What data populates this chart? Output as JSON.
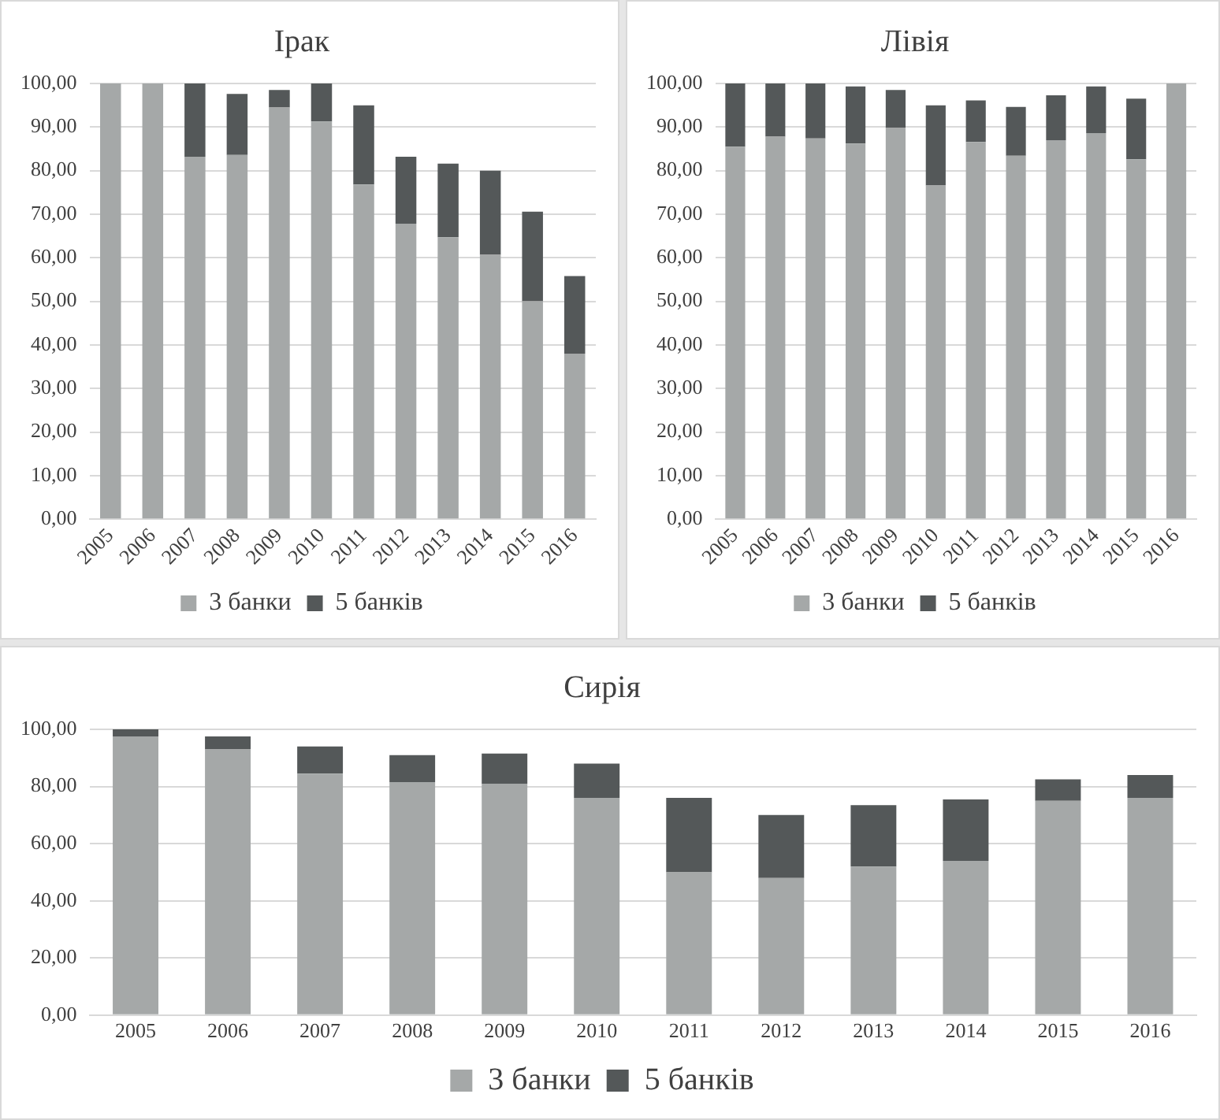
{
  "chart_data": [
    {
      "type": "bar",
      "title": "Ірак",
      "stacked": true,
      "grid": "y",
      "legend": "bottom",
      "categories": [
        "2005",
        "2006",
        "2007",
        "2008",
        "2009",
        "2010",
        "2011",
        "2012",
        "2013",
        "2014",
        "2015",
        "2016"
      ],
      "series": [
        {
          "name": "3 банки",
          "color": "#a5a8a8",
          "values": [
            100,
            100,
            83.2,
            83.6,
            94.5,
            91.3,
            76.8,
            67.8,
            64.7,
            60.7,
            50,
            38
          ]
        },
        {
          "name": "5 банків",
          "color": "#545859",
          "values": [
            0,
            0,
            16.8,
            14,
            4,
            8.7,
            18.2,
            15.4,
            16.9,
            19.3,
            20.6,
            17.8
          ]
        }
      ],
      "ylim": [
        0,
        100
      ],
      "yticks": [
        {
          "value": 0,
          "label": "0,00"
        },
        {
          "value": 10,
          "label": "10,00"
        },
        {
          "value": 20,
          "label": "20,00"
        },
        {
          "value": 30,
          "label": "30,00"
        },
        {
          "value": 40,
          "label": "40,00"
        },
        {
          "value": 50,
          "label": "50,00"
        },
        {
          "value": 60,
          "label": "60,00"
        },
        {
          "value": 70,
          "label": "70,00"
        },
        {
          "value": 80,
          "label": "80,00"
        },
        {
          "value": 90,
          "label": "90,00"
        },
        {
          "value": 100,
          "label": "100,00"
        }
      ]
    },
    {
      "type": "bar",
      "title": "Лівія",
      "stacked": true,
      "grid": "y",
      "legend": "bottom",
      "categories": [
        "2005",
        "2006",
        "2007",
        "2008",
        "2009",
        "2010",
        "2011",
        "2012",
        "2013",
        "2014",
        "2015",
        "2016"
      ],
      "series": [
        {
          "name": "3 банки",
          "color": "#a5a8a8",
          "values": [
            85.5,
            87.8,
            87.4,
            86.2,
            89.8,
            76.6,
            86.6,
            83.4,
            87,
            88.6,
            82.6,
            100
          ]
        },
        {
          "name": "5 банків",
          "color": "#545859",
          "values": [
            14.5,
            12.2,
            12.6,
            13.1,
            8.7,
            18.4,
            9.5,
            11.2,
            10.3,
            10.7,
            13.9,
            0
          ]
        }
      ],
      "ylim": [
        0,
        100
      ],
      "yticks": [
        {
          "value": 0,
          "label": "0,00"
        },
        {
          "value": 10,
          "label": "10,00"
        },
        {
          "value": 20,
          "label": "20,00"
        },
        {
          "value": 30,
          "label": "30,00"
        },
        {
          "value": 40,
          "label": "40,00"
        },
        {
          "value": 50,
          "label": "50,00"
        },
        {
          "value": 60,
          "label": "60,00"
        },
        {
          "value": 70,
          "label": "70,00"
        },
        {
          "value": 80,
          "label": "80,00"
        },
        {
          "value": 90,
          "label": "90,00"
        },
        {
          "value": 100,
          "label": "100,00"
        }
      ]
    },
    {
      "type": "bar",
      "title": "Сирія",
      "stacked": true,
      "grid": "y",
      "legend": "bottom",
      "categories": [
        "2005",
        "2006",
        "2007",
        "2008",
        "2009",
        "2010",
        "2011",
        "2012",
        "2013",
        "2014",
        "2015",
        "2016"
      ],
      "series": [
        {
          "name": "3 банки",
          "color": "#a5a8a8",
          "values": [
            97.5,
            93,
            84.5,
            81.5,
            81,
            76,
            50,
            48,
            52,
            54,
            75,
            76
          ]
        },
        {
          "name": "5 банків",
          "color": "#545859",
          "values": [
            2.5,
            4.5,
            9.5,
            9.5,
            10.5,
            12,
            26,
            22,
            21.5,
            21.5,
            7.5,
            8
          ]
        }
      ],
      "ylim": [
        0,
        100
      ],
      "yticks": [
        {
          "value": 0,
          "label": "0,00"
        },
        {
          "value": 20,
          "label": "20,00"
        },
        {
          "value": 40,
          "label": "40,00"
        },
        {
          "value": 60,
          "label": "60,00"
        },
        {
          "value": 80,
          "label": "80,00"
        },
        {
          "value": 100,
          "label": "100,00"
        }
      ]
    }
  ]
}
